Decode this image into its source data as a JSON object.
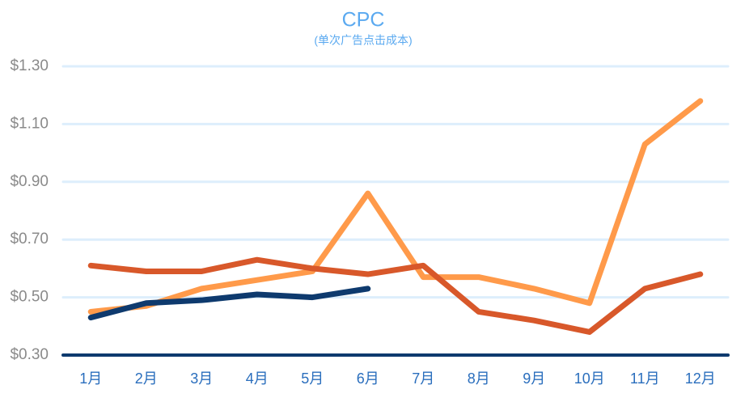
{
  "chart_data": {
    "type": "line",
    "title": "CPC",
    "subtitle": "(单次广告点击成本)",
    "categories": [
      "1月",
      "2月",
      "3月",
      "4月",
      "5月",
      "6月",
      "7月",
      "8月",
      "9月",
      "10月",
      "11月",
      "12月"
    ],
    "series": [
      {
        "color": "#ff9a4a",
        "values": [
          0.45,
          0.47,
          0.53,
          0.56,
          0.59,
          0.86,
          0.57,
          0.57,
          0.53,
          0.48,
          1.03,
          1.18
        ]
      },
      {
        "color": "#d8582a",
        "values": [
          0.61,
          0.59,
          0.59,
          0.63,
          0.6,
          0.58,
          0.61,
          0.45,
          0.42,
          0.38,
          0.53,
          0.58
        ]
      },
      {
        "color": "#0e3a6e",
        "values": [
          0.43,
          0.48,
          0.49,
          0.51,
          0.5,
          0.53,
          null,
          null,
          null,
          null,
          null,
          null
        ]
      }
    ],
    "ylim": [
      0.3,
      1.3
    ],
    "yticks": [
      {
        "value": 0.3,
        "label": "$0.30"
      },
      {
        "value": 0.5,
        "label": "$0.50"
      },
      {
        "value": 0.7,
        "label": "$0.70"
      },
      {
        "value": 0.9,
        "label": "$0.90"
      },
      {
        "value": 1.1,
        "label": "$1.10"
      },
      {
        "value": 1.3,
        "label": "$1.30"
      }
    ],
    "grid": true
  }
}
